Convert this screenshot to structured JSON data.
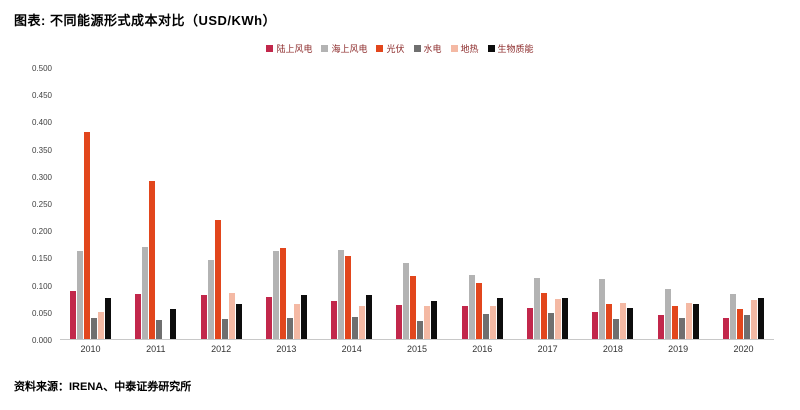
{
  "header": {
    "title": "图表: 不同能源形式成本对比（USD/KWh）"
  },
  "footer": {
    "source": "资料来源：IRENA、中泰证券研究所"
  },
  "colors": {
    "onshore_wind": "#c2274b",
    "offshore_wind": "#b3b3b3",
    "solar_pv": "#e2461c",
    "hydro": "#6f6f6f",
    "geothermal": "#f4b9a4",
    "biomass": "#0d0d0d",
    "legend_text": "#8c2a2a"
  },
  "chart_data": {
    "type": "bar",
    "title": "不同能源形式成本对比（USD/KWh）",
    "unit": "USD/KWh",
    "xlabel": "",
    "ylabel": "",
    "ylim": [
      0,
      0.5
    ],
    "grid": false,
    "legend_position": "top-center",
    "y_ticks": [
      "0.500",
      "0.450",
      "0.400",
      "0.350",
      "0.300",
      "0.250",
      "0.200",
      "0.150",
      "0.100",
      "0.050",
      "0.000"
    ],
    "categories": [
      "2010",
      "2011",
      "2012",
      "2013",
      "2014",
      "2015",
      "2016",
      "2017",
      "2018",
      "2019",
      "2020"
    ],
    "series": [
      {
        "name": "陆上风电",
        "color": "#c2274b",
        "values": [
          0.088,
          0.082,
          0.08,
          0.077,
          0.07,
          0.063,
          0.06,
          0.057,
          0.05,
          0.044,
          0.039
        ]
      },
      {
        "name": "海上风电",
        "color": "#b3b3b3",
        "values": [
          0.161,
          0.17,
          0.146,
          0.161,
          0.164,
          0.14,
          0.117,
          0.113,
          0.11,
          0.092,
          0.083
        ]
      },
      {
        "name": "光伏",
        "color": "#e2461c",
        "values": [
          0.381,
          0.29,
          0.219,
          0.168,
          0.153,
          0.116,
          0.103,
          0.085,
          0.064,
          0.06,
          0.055
        ]
      },
      {
        "name": "水电",
        "color": "#6f6f6f",
        "values": [
          0.038,
          0.035,
          0.037,
          0.038,
          0.04,
          0.034,
          0.046,
          0.048,
          0.037,
          0.039,
          0.044
        ]
      },
      {
        "name": "地热",
        "color": "#f4b9a4",
        "values": [
          0.049,
          null,
          0.085,
          0.064,
          0.06,
          0.06,
          0.06,
          0.073,
          0.066,
          0.066,
          0.071
        ]
      },
      {
        "name": "生物质能",
        "color": "#0d0d0d",
        "values": [
          0.076,
          0.056,
          0.065,
          0.081,
          0.081,
          0.07,
          0.075,
          0.075,
          0.057,
          0.065,
          0.076
        ]
      }
    ]
  }
}
